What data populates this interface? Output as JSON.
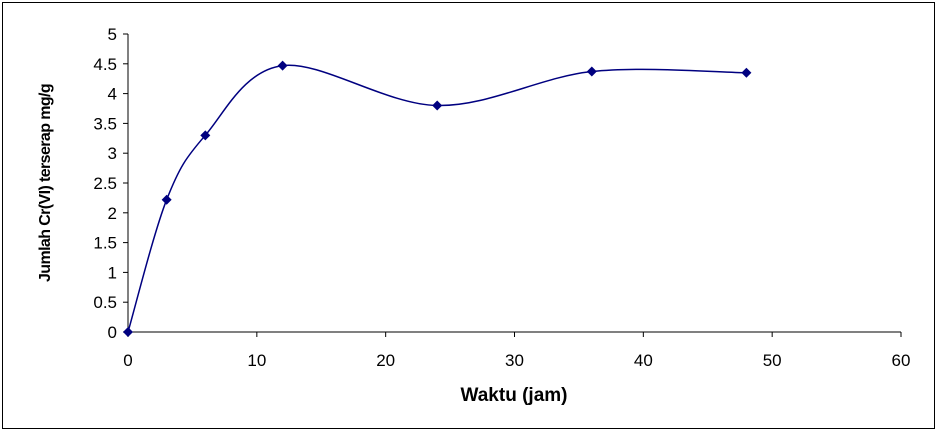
{
  "chart_data": {
    "type": "line",
    "title": "",
    "xlabel": "Waktu (jam)",
    "ylabel": "Jumlah Cr(VI) terserap mg/g",
    "xlim": [
      0,
      60
    ],
    "ylim": [
      0,
      5
    ],
    "x_ticks": [
      "0",
      "10",
      "20",
      "30",
      "40",
      "50",
      "60"
    ],
    "y_ticks": [
      "0",
      "0.5",
      "1",
      "1.5",
      "2",
      "2.5",
      "3",
      "3.5",
      "4",
      "4.5",
      "5"
    ],
    "grid": false,
    "legend": "none",
    "smooth": true,
    "marker": "diamond",
    "color": "#000080",
    "series": [
      {
        "x": [
          0,
          3,
          6,
          12,
          24,
          36,
          48
        ],
        "y": [
          0,
          2.22,
          3.3,
          4.47,
          3.8,
          4.37,
          4.35
        ]
      }
    ]
  }
}
